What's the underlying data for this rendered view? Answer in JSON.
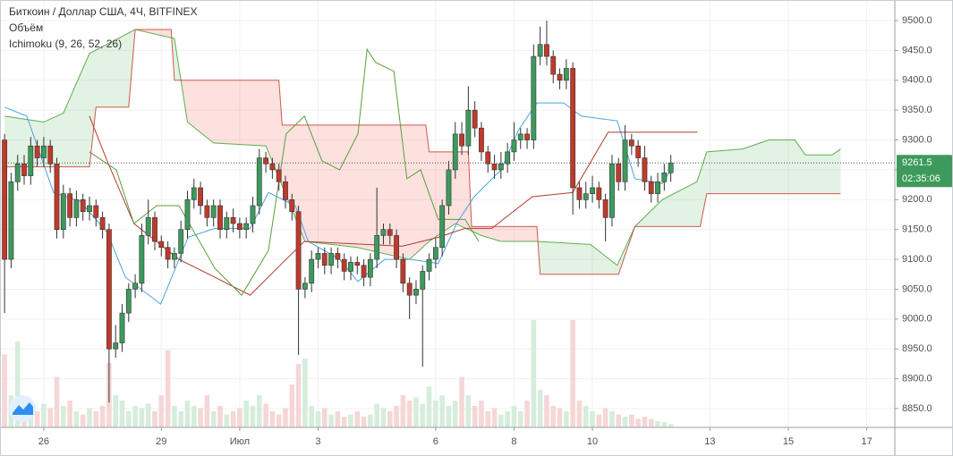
{
  "chart_data": {
    "type": "candlestick",
    "title": "Биткоин / Доллар США, 4Ч, BITFINEX",
    "indicators": [
      "Объём",
      "Ichimoku (9, 26, 52, 26)"
    ],
    "up_color": "#3d9a5c",
    "down_color": "#c0392b",
    "volume_up_color": "#d6eddc",
    "volume_down_color": "#f6d6d6",
    "x": [
      -6,
      -5,
      -4,
      -3,
      -2,
      -1,
      0,
      1,
      2,
      3,
      4,
      5,
      6,
      7,
      8,
      9,
      10,
      11,
      12,
      13,
      14,
      15,
      16,
      17,
      18,
      19,
      20,
      21,
      22,
      23,
      24,
      25,
      26,
      27,
      28,
      29,
      30,
      31,
      32,
      33,
      34,
      35,
      36,
      37,
      38,
      39,
      40,
      41,
      42,
      43,
      44,
      45,
      46,
      47,
      48,
      49,
      50,
      51,
      52,
      53,
      54,
      55,
      56,
      57,
      58,
      59,
      60,
      61,
      62,
      63,
      64,
      65,
      66,
      67,
      68,
      69,
      70,
      71,
      72,
      73,
      74,
      75,
      76,
      77,
      78,
      79,
      80,
      81,
      82,
      83,
      84,
      85,
      86,
      87,
      88,
      89,
      90,
      91,
      92,
      93,
      94,
      95,
      96
    ],
    "open": [
      9300,
      9100,
      9230,
      9260,
      9240,
      9290,
      9270,
      9290,
      9260,
      9150,
      9210,
      9170,
      9200,
      9180,
      9190,
      9170,
      9150,
      8950,
      8960,
      9010,
      9050,
      9060,
      9140,
      9170,
      9130,
      9120,
      9100,
      9110,
      9150,
      9200,
      9220,
      9190,
      9170,
      9190,
      9150,
      9170,
      9160,
      9150,
      9160,
      9190,
      9270,
      9260,
      9250,
      9230,
      9200,
      9180,
      9050,
      9060,
      9100,
      9110,
      9090,
      9110,
      9100,
      9080,
      9095,
      9090,
      9070,
      9100,
      9140,
      9150,
      9140,
      9100,
      9060,
      9040,
      9050,
      9080,
      9100,
      9120,
      9190,
      9250,
      9310,
      9290,
      9350,
      9320,
      9280,
      9260,
      9250,
      9260,
      9280,
      9300,
      9310,
      9300,
      9440,
      9460,
      9440,
      9410,
      9400,
      9420,
      9220,
      9200,
      9210,
      9220,
      9200,
      9170,
      9260,
      9230,
      9300,
      9290,
      9270,
      9230,
      9210,
      9230,
      9245
    ],
    "high": [
      9310,
      9245,
      9275,
      9275,
      9305,
      9300,
      9305,
      9300,
      9270,
      9225,
      9220,
      9215,
      9210,
      9205,
      9200,
      9180,
      9160,
      8990,
      9025,
      9060,
      9075,
      9160,
      9200,
      9180,
      9140,
      9130,
      9120,
      9165,
      9215,
      9235,
      9230,
      9200,
      9200,
      9200,
      9180,
      9185,
      9170,
      9170,
      9205,
      9285,
      9280,
      9270,
      9260,
      9240,
      9210,
      9190,
      9070,
      9115,
      9120,
      9120,
      9120,
      9120,
      9110,
      9105,
      9105,
      9100,
      9110,
      9220,
      9160,
      9160,
      9150,
      9110,
      9070,
      9065,
      9090,
      9110,
      9135,
      9200,
      9265,
      9330,
      9330,
      9390,
      9365,
      9330,
      9290,
      9275,
      9280,
      9295,
      9330,
      9320,
      9320,
      9460,
      9490,
      9500,
      9450,
      9420,
      9435,
      9430,
      9230,
      9230,
      9240,
      9230,
      9210,
      9275,
      9270,
      9325,
      9310,
      9300,
      9290,
      9240,
      9245,
      9260,
      9275
    ],
    "low": [
      9010,
      9085,
      9215,
      9225,
      9225,
      9255,
      9255,
      9245,
      9135,
      9135,
      9155,
      9155,
      9165,
      9165,
      9155,
      9135,
      8860,
      8935,
      8945,
      8995,
      9035,
      9045,
      9125,
      9115,
      9105,
      9085,
      9085,
      9095,
      9135,
      9185,
      9175,
      9155,
      9155,
      9135,
      9135,
      9145,
      9135,
      9135,
      9145,
      9175,
      9245,
      9235,
      9215,
      9185,
      9165,
      8940,
      9035,
      9045,
      9085,
      9075,
      9075,
      9085,
      9065,
      9065,
      9075,
      9055,
      9055,
      9085,
      9125,
      9125,
      9085,
      9045,
      9000,
      9025,
      8920,
      9065,
      9085,
      9105,
      9175,
      9235,
      9275,
      9275,
      9305,
      9265,
      9245,
      9235,
      9235,
      9245,
      9265,
      9285,
      9285,
      9285,
      9425,
      9425,
      9395,
      9385,
      9385,
      9175,
      9185,
      9185,
      9195,
      9185,
      9130,
      9155,
      9215,
      9215,
      9275,
      9255,
      9215,
      9195,
      9195,
      9215,
      9230
    ],
    "close": [
      9100,
      9230,
      9260,
      9240,
      9290,
      9270,
      9290,
      9260,
      9150,
      9210,
      9170,
      9200,
      9180,
      9190,
      9170,
      9150,
      8950,
      8960,
      9010,
      9050,
      9060,
      9140,
      9170,
      9130,
      9120,
      9100,
      9110,
      9150,
      9200,
      9220,
      9190,
      9170,
      9190,
      9150,
      9170,
      9160,
      9150,
      9160,
      9190,
      9270,
      9260,
      9250,
      9230,
      9200,
      9180,
      9050,
      9060,
      9100,
      9110,
      9090,
      9110,
      9100,
      9080,
      9095,
      9090,
      9070,
      9100,
      9140,
      9150,
      9140,
      9100,
      9060,
      9040,
      9050,
      9080,
      9100,
      9120,
      9190,
      9250,
      9310,
      9290,
      9350,
      9320,
      9280,
      9260,
      9250,
      9260,
      9280,
      9300,
      9310,
      9300,
      9440,
      9460,
      9440,
      9410,
      9400,
      9420,
      9220,
      9200,
      9210,
      9220,
      9200,
      9170,
      9260,
      9230,
      9300,
      9290,
      9270,
      9230,
      9210,
      9230,
      9245,
      9261.5
    ],
    "volume": [
      68,
      30,
      80,
      25,
      20,
      15,
      22,
      18,
      47,
      20,
      25,
      15,
      12,
      18,
      15,
      20,
      60,
      30,
      25,
      15,
      20,
      18,
      22,
      15,
      30,
      72,
      20,
      15,
      25,
      20,
      18,
      30,
      15,
      20,
      12,
      15,
      18,
      25,
      20,
      30,
      22,
      15,
      12,
      18,
      40,
      59,
      64,
      20,
      15,
      18,
      12,
      15,
      10,
      12,
      15,
      10,
      12,
      22,
      18,
      15,
      20,
      30,
      25,
      28,
      22,
      38,
      25,
      30,
      20,
      25,
      47,
      30,
      20,
      25,
      15,
      18,
      12,
      15,
      20,
      15,
      25,
      100,
      35,
      30,
      20,
      18,
      15,
      100,
      25,
      20,
      15,
      12,
      18,
      15,
      12,
      10,
      12,
      8,
      10,
      8,
      6,
      5,
      3
    ],
    "lines": [
      {
        "color": "#4aa3df",
        "x": [
          -6,
          -2.6,
          1.5,
          5.6,
          9.7,
          12.5,
          17.9,
          22.1,
          26.2,
          31.6,
          34.4,
          38.5,
          40.5,
          45.3,
          48.1,
          52.2,
          56.3,
          60.4,
          63.2,
          65.9,
          70,
          72.7,
          75.5,
          79.6,
          82.3,
          87.8,
          90.5,
          94.7,
          96
        ],
        "values": [
          9355,
          9340,
          9212,
          9197,
          9145,
          9070,
          9025,
          9137,
          9152,
          9152,
          9212,
          9190,
          9130,
          9100,
          9063,
          9100,
          9100,
          9093,
          9160,
          9205,
          9250,
          9317,
          9362,
          9362,
          9340,
          9332,
          9235,
          9227,
          9250
        ]
      },
      {
        "color": "#b23a2e",
        "x": [
          7,
          9.7,
          13.8,
          20.7,
          26.2,
          31.6,
          37.1,
          39.9,
          54.9,
          60.4,
          64.5,
          68.6,
          74.8,
          81,
          86.4,
          100.1
        ],
        "values": [
          9340,
          9265,
          9160,
          9100,
          9070,
          9040,
          9100,
          9130,
          9122,
          9137,
          9152,
          9152,
          9205,
          9212,
          9313,
          9313
        ]
      },
      {
        "color": "#5b9e3a",
        "x": [
          7,
          11.1,
          13.8,
          17.3,
          20.7,
          26.2,
          30.3,
          34.4,
          37.1,
          39.9,
          42.6,
          45.3,
          48.1,
          49.5,
          50.8,
          53.6,
          55.6,
          57.7,
          60.4,
          64.5,
          66.6
        ],
        "values": [
          9280,
          9250,
          9160,
          9190,
          9190,
          9085,
          9040,
          9115,
          9310,
          9340,
          9265,
          9250,
          9310,
          9452,
          9430,
          9415,
          9235,
          9250,
          9167,
          9167,
          9130
        ]
      }
    ],
    "cloud": {
      "a": {
        "color": "#5fae4e",
        "x": [
          -6,
          0,
          3,
          7,
          14,
          20,
          22,
          26,
          34,
          40,
          48,
          56,
          59,
          63,
          67,
          70,
          75.5,
          83.7,
          87.8,
          90.5,
          94.7,
          100,
          101.5,
          107,
          111,
          115,
          116.6,
          120.7,
          122
        ],
        "values": [
          9340,
          9330,
          9345,
          9445,
          9485,
          9470,
          9330,
          9295,
          9290,
          9130,
          9120,
          9100,
          9130,
          9160,
          9140,
          9130,
          9130,
          9125,
          9090,
          9155,
          9200,
          9230,
          9280,
          9285,
          9300,
          9300,
          9275,
          9275,
          9285
        ]
      },
      "b": {
        "color": "#d0584c",
        "x": [
          -6,
          7,
          8,
          13,
          14,
          19.5,
          20,
          36,
          36.5,
          58.5,
          59,
          65,
          65.5,
          75.5,
          76,
          88,
          90.5,
          100.5,
          101.5,
          122
        ],
        "values": [
          9255,
          9255,
          9355,
          9355,
          9485,
          9485,
          9400,
          9400,
          9325,
          9325,
          9280,
          9280,
          9155,
          9155,
          9075,
          9075,
          9155,
          9155,
          9210,
          9210
        ]
      },
      "up_fill": "rgba(76,175,80,0.16)",
      "down_fill": "rgba(244,67,54,0.16)"
    },
    "last_price": 9261.5,
    "countdown": "02:35:06",
    "price_label_color": "#3d9a5c",
    "xlim": [
      -6.7,
      130.3
    ],
    "xticks": [
      {
        "value": 0,
        "label": "26"
      },
      {
        "value": 18,
        "label": "29"
      },
      {
        "value": 30,
        "label": "Июл"
      },
      {
        "value": 42,
        "label": "3"
      },
      {
        "value": 60,
        "label": "6"
      },
      {
        "value": 72,
        "label": "8"
      },
      {
        "value": 84,
        "label": "10"
      },
      {
        "value": 102,
        "label": "13"
      },
      {
        "value": 114,
        "label": "15"
      },
      {
        "value": 126,
        "label": "17"
      }
    ],
    "ylim": [
      8818.5,
      9534.5
    ],
    "yticks": [
      {
        "value": 8850,
        "label": "8850.0"
      },
      {
        "value": 8900,
        "label": "8900.0"
      },
      {
        "value": 8950,
        "label": "8950.0"
      },
      {
        "value": 9000,
        "label": "9000.0"
      },
      {
        "value": 9050,
        "label": "9050.0"
      },
      {
        "value": 9100,
        "label": "9100.0"
      },
      {
        "value": 9150,
        "label": "9150.0"
      },
      {
        "value": 9200,
        "label": "9200.0"
      },
      {
        "value": 9250,
        "label": "9250.0"
      },
      {
        "value": 9300,
        "label": "9300.0"
      },
      {
        "value": 9350,
        "label": "9350.0"
      },
      {
        "value": 9400,
        "label": "9400.0"
      },
      {
        "value": 9450,
        "label": "9450.0"
      },
      {
        "value": 9500,
        "label": "9500.0"
      }
    ],
    "grid": true
  }
}
